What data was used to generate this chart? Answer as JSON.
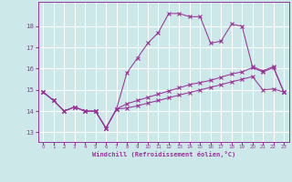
{
  "xlabel": "Windchill (Refroidissement éolien,°C)",
  "bg_color": "#cce8e8",
  "grid_color": "#ffffff",
  "line_color": "#993399",
  "xlim_min": -0.5,
  "xlim_max": 23.5,
  "ylim_min": 12.55,
  "ylim_max": 19.15,
  "yticks": [
    13,
    14,
    15,
    16,
    17,
    18
  ],
  "xticks": [
    0,
    1,
    2,
    3,
    4,
    5,
    6,
    7,
    8,
    9,
    10,
    11,
    12,
    13,
    14,
    15,
    16,
    17,
    18,
    19,
    20,
    21,
    22,
    23
  ],
  "line1_x": [
    0,
    1,
    2,
    3,
    4,
    5,
    6,
    7,
    8,
    9,
    10,
    11,
    12,
    13,
    14,
    15,
    16,
    17,
    18,
    19,
    20,
    21,
    22,
    23
  ],
  "line1_y": [
    14.9,
    14.5,
    14.0,
    14.2,
    14.0,
    14.0,
    13.2,
    14.1,
    15.8,
    16.5,
    17.2,
    17.7,
    18.6,
    18.6,
    18.45,
    18.45,
    17.2,
    17.3,
    18.1,
    18.0,
    16.1,
    15.9,
    16.1,
    14.9
  ],
  "line2_x": [
    0,
    1,
    2,
    3,
    4,
    5,
    6,
    7,
    8,
    9,
    10,
    11,
    12,
    13,
    14,
    15,
    16,
    17,
    18,
    19,
    20,
    21,
    22,
    23
  ],
  "line2_y": [
    14.9,
    14.5,
    14.0,
    14.2,
    14.0,
    14.0,
    13.2,
    14.1,
    14.35,
    14.5,
    14.65,
    14.8,
    14.95,
    15.1,
    15.25,
    15.35,
    15.45,
    15.6,
    15.75,
    15.85,
    16.05,
    15.85,
    16.05,
    14.9
  ],
  "line3_x": [
    0,
    1,
    2,
    3,
    4,
    5,
    6,
    7,
    8,
    9,
    10,
    11,
    12,
    13,
    14,
    15,
    16,
    17,
    18,
    19,
    20,
    21,
    22,
    23
  ],
  "line3_y": [
    14.9,
    14.5,
    14.0,
    14.2,
    14.0,
    14.0,
    13.2,
    14.1,
    14.15,
    14.25,
    14.38,
    14.5,
    14.63,
    14.76,
    14.88,
    15.0,
    15.12,
    15.25,
    15.38,
    15.5,
    15.63,
    15.0,
    15.05,
    14.9
  ]
}
